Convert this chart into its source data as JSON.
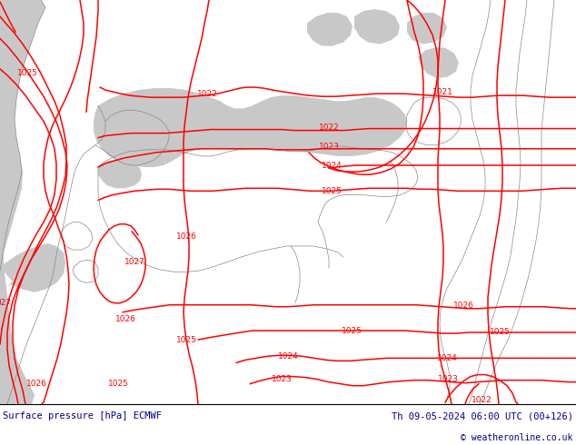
{
  "title_left": "Surface pressure [hPa] ECMWF",
  "title_right": "Th 09-05-2024 06:00 UTC (00+126)",
  "copyright": "© weatheronline.co.uk",
  "land_color": "#b5e6a2",
  "sea_color": "#c8c8c8",
  "contour_color": "#ff0000",
  "coastline_color": "#888888",
  "label_color": "#ff0000",
  "footer_bg": "#ffffff",
  "footer_text_color": "#00008b",
  "figsize": [
    6.34,
    4.9
  ],
  "dpi": 100,
  "contour_linewidth": 1.1,
  "label_fontsize": 6.5,
  "footer_fontsize": 7.5
}
